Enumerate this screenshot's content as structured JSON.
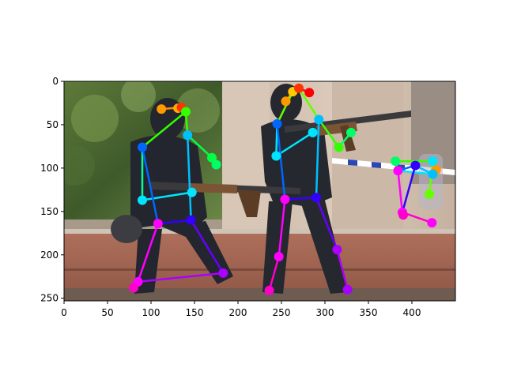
{
  "chart_data": {
    "type": "scatter",
    "description_note": "",
    "x_ticks": [
      "0",
      "50",
      "100",
      "150",
      "200",
      "250",
      "300",
      "350",
      "400"
    ],
    "y_ticks": [
      "0",
      "50",
      "100",
      "150",
      "200",
      "250"
    ],
    "xlim": [
      0,
      450
    ],
    "ylim": [
      253,
      0
    ],
    "grid": false,
    "people": [
      {
        "bones": [
          {
            "from": [
              112,
              32
            ],
            "to": [
              135,
              30
            ],
            "color": "#ff8c00"
          },
          {
            "from": [
              135,
              30
            ],
            "to": [
              140,
              35
            ],
            "color": "#ff3300"
          },
          {
            "from": [
              140,
              35
            ],
            "to": [
              90,
              76
            ],
            "color": "#33ff00"
          },
          {
            "from": [
              140,
              35
            ],
            "to": [
              142,
              62
            ],
            "color": "#33ff00"
          },
          {
            "from": [
              142,
              62
            ],
            "to": [
              170,
              88
            ],
            "color": "#00ff44"
          },
          {
            "from": [
              170,
              88
            ],
            "to": [
              175,
              96
            ],
            "color": "#00ff66"
          },
          {
            "from": [
              90,
              76
            ],
            "to": [
              90,
              137
            ],
            "color": "#00ff99"
          },
          {
            "from": [
              90,
              137
            ],
            "to": [
              147,
              128
            ],
            "color": "#00e5ff"
          },
          {
            "from": [
              90,
              76
            ],
            "to": [
              108,
              164
            ],
            "color": "#0066ff"
          },
          {
            "from": [
              142,
              62
            ],
            "to": [
              146,
              160
            ],
            "color": "#00bfff"
          },
          {
            "from": [
              108,
              164
            ],
            "to": [
              146,
              160
            ],
            "color": "#3300ff"
          },
          {
            "from": [
              146,
              160
            ],
            "to": [
              183,
              221
            ],
            "color": "#6600ff"
          },
          {
            "from": [
              108,
              164
            ],
            "to": [
              85,
              231
            ],
            "color": "#ff00ff"
          },
          {
            "from": [
              85,
              231
            ],
            "to": [
              183,
              221
            ],
            "color": "#aa00ff"
          },
          {
            "from": [
              85,
              231
            ],
            "to": [
              80,
              238
            ],
            "color": "#ff00cc"
          }
        ],
        "joints": [
          {
            "x": 112,
            "y": 32,
            "color": "#ff9900"
          },
          {
            "x": 131,
            "y": 31,
            "color": "#ffaa00"
          },
          {
            "x": 135,
            "y": 30,
            "color": "#ff3300"
          },
          {
            "x": 140,
            "y": 35,
            "color": "#33ff00"
          },
          {
            "x": 90,
            "y": 76,
            "color": "#0066ff"
          },
          {
            "x": 142,
            "y": 62,
            "color": "#00bfff"
          },
          {
            "x": 170,
            "y": 88,
            "color": "#00ff44"
          },
          {
            "x": 175,
            "y": 96,
            "color": "#00ff66"
          },
          {
            "x": 90,
            "y": 137,
            "color": "#00e5ff"
          },
          {
            "x": 147,
            "y": 128,
            "color": "#00e5ff"
          },
          {
            "x": 108,
            "y": 164,
            "color": "#ff00ff"
          },
          {
            "x": 146,
            "y": 160,
            "color": "#3300ff"
          },
          {
            "x": 183,
            "y": 221,
            "color": "#aa00ff"
          },
          {
            "x": 85,
            "y": 231,
            "color": "#ff00ff"
          },
          {
            "x": 80,
            "y": 238,
            "color": "#ff00cc"
          }
        ]
      },
      {
        "bones": [
          {
            "from": [
              255,
              23
            ],
            "to": [
              263,
              12
            ],
            "color": "#ff8c00"
          },
          {
            "from": [
              263,
              12
            ],
            "to": [
              270,
              8
            ],
            "color": "#ff3300"
          },
          {
            "from": [
              270,
              8
            ],
            "to": [
              282,
              13
            ],
            "color": "#ff0000"
          },
          {
            "from": [
              263,
              12
            ],
            "to": [
              245,
              49
            ],
            "color": "#66ff00"
          },
          {
            "from": [
              270,
              8
            ],
            "to": [
              293,
              44
            ],
            "color": "#66ff00"
          },
          {
            "from": [
              293,
              44
            ],
            "to": [
              316,
              76
            ],
            "color": "#33ff00"
          },
          {
            "from": [
              316,
              76
            ],
            "to": [
              330,
              59
            ],
            "color": "#00ff66"
          },
          {
            "from": [
              245,
              49
            ],
            "to": [
              244,
              86
            ],
            "color": "#00e5ff"
          },
          {
            "from": [
              244,
              86
            ],
            "to": [
              286,
              59
            ],
            "color": "#00e5ff"
          },
          {
            "from": [
              245,
              49
            ],
            "to": [
              254,
              136
            ],
            "color": "#0066ff"
          },
          {
            "from": [
              293,
              44
            ],
            "to": [
              290,
              134
            ],
            "color": "#00bfff"
          },
          {
            "from": [
              254,
              136
            ],
            "to": [
              290,
              134
            ],
            "color": "#3300ff"
          },
          {
            "from": [
              290,
              134
            ],
            "to": [
              314,
              194
            ],
            "color": "#6600ff"
          },
          {
            "from": [
              314,
              194
            ],
            "to": [
              326,
              240
            ],
            "color": "#aa00ff"
          },
          {
            "from": [
              254,
              136
            ],
            "to": [
              247,
              202
            ],
            "color": "#ff00ff"
          },
          {
            "from": [
              247,
              202
            ],
            "to": [
              236,
              241
            ],
            "color": "#ff00cc"
          }
        ],
        "joints": [
          {
            "x": 255,
            "y": 23,
            "color": "#ff9900"
          },
          {
            "x": 263,
            "y": 12,
            "color": "#ffcc00"
          },
          {
            "x": 270,
            "y": 8,
            "color": "#ff3300"
          },
          {
            "x": 282,
            "y": 13,
            "color": "#ff0000"
          },
          {
            "x": 245,
            "y": 49,
            "color": "#0066ff"
          },
          {
            "x": 293,
            "y": 44,
            "color": "#00bfff"
          },
          {
            "x": 316,
            "y": 76,
            "color": "#33ff00"
          },
          {
            "x": 330,
            "y": 59,
            "color": "#00ff66"
          },
          {
            "x": 244,
            "y": 86,
            "color": "#00e5ff"
          },
          {
            "x": 286,
            "y": 59,
            "color": "#00e5ff"
          },
          {
            "x": 254,
            "y": 136,
            "color": "#ff00ff"
          },
          {
            "x": 290,
            "y": 134,
            "color": "#3300ff"
          },
          {
            "x": 314,
            "y": 194,
            "color": "#aa00ff"
          },
          {
            "x": 326,
            "y": 240,
            "color": "#aa00ff"
          },
          {
            "x": 247,
            "y": 202,
            "color": "#ff00ff"
          },
          {
            "x": 236,
            "y": 241,
            "color": "#ff00cc"
          }
        ]
      },
      {
        "bones": [
          {
            "from": [
              381,
              92
            ],
            "to": [
              424,
              92
            ],
            "color": "#33ff00"
          },
          {
            "from": [
              424,
              92
            ],
            "to": [
              428,
              102
            ],
            "color": "#ff8c00"
          },
          {
            "from": [
              424,
              92
            ],
            "to": [
              420,
              130
            ],
            "color": "#66ff00"
          },
          {
            "from": [
              381,
              92
            ],
            "to": [
              384,
              103
            ],
            "color": "#00ff66"
          },
          {
            "from": [
              384,
              103
            ],
            "to": [
              404,
              97
            ],
            "color": "#0066ff"
          },
          {
            "from": [
              404,
              97
            ],
            "to": [
              424,
              107
            ],
            "color": "#00bfff"
          },
          {
            "from": [
              384,
              103
            ],
            "to": [
              424,
              107
            ],
            "color": "#00e5ff"
          },
          {
            "from": [
              384,
              103
            ],
            "to": [
              389,
              151
            ],
            "color": "#ff00ff"
          },
          {
            "from": [
              404,
              97
            ],
            "to": [
              389,
              151
            ],
            "color": "#3300ff"
          },
          {
            "from": [
              389,
              151
            ],
            "to": [
              423,
              163
            ],
            "color": "#ff00cc"
          }
        ],
        "joints": [
          {
            "x": 381,
            "y": 92,
            "color": "#00ff66"
          },
          {
            "x": 424,
            "y": 92,
            "color": "#00e5ff"
          },
          {
            "x": 428,
            "y": 102,
            "color": "#ff9900"
          },
          {
            "x": 420,
            "y": 130,
            "color": "#66ff00"
          },
          {
            "x": 384,
            "y": 103,
            "color": "#ff00ff"
          },
          {
            "x": 404,
            "y": 97,
            "color": "#3300ff"
          },
          {
            "x": 424,
            "y": 107,
            "color": "#00bfff"
          },
          {
            "x": 389,
            "y": 151,
            "color": "#ff00ff"
          },
          {
            "x": 390,
            "y": 154,
            "color": "#ff00cc"
          },
          {
            "x": 423,
            "y": 163,
            "color": "#ff00ff"
          }
        ]
      }
    ]
  }
}
